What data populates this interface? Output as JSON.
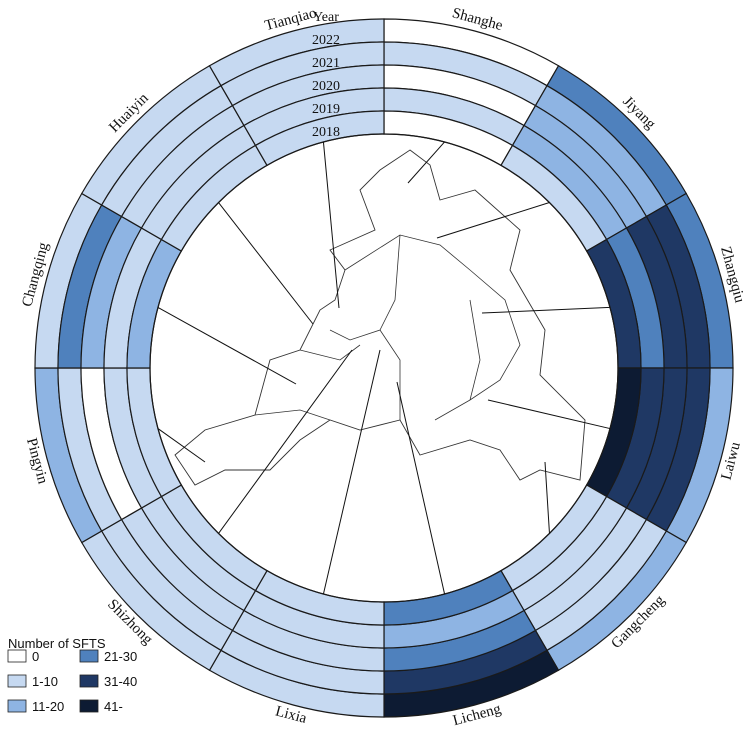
{
  "chart_data": {
    "type": "heatmap",
    "layout": "radial",
    "years": [
      "2022",
      "2021",
      "2020",
      "2019",
      "2018"
    ],
    "year_header": "Year",
    "districts": [
      "Shanghe",
      "Jiyang",
      "Zhangqiu",
      "Laiwu",
      "Gangcheng",
      "Licheng",
      "Lixia",
      "Shizhong",
      "Pingyin",
      "Changqing",
      "Huaiyin",
      "Tianqiao"
    ],
    "category_index": {
      "Shanghe": [
        0,
        1,
        0,
        1,
        0
      ],
      "Jiyang": [
        3,
        2,
        2,
        2,
        1
      ],
      "Zhangqiu": [
        3,
        4,
        4,
        3,
        4
      ],
      "Laiwu": [
        2,
        4,
        4,
        4,
        5
      ],
      "Gangcheng": [
        2,
        1,
        1,
        1,
        1
      ],
      "Licheng": [
        5,
        4,
        3,
        2,
        3
      ],
      "Lixia": [
        1,
        1,
        1,
        1,
        1
      ],
      "Shizhong": [
        1,
        1,
        1,
        1,
        1
      ],
      "Pingyin": [
        2,
        1,
        0,
        1,
        1
      ],
      "Changqing": [
        1,
        3,
        2,
        1,
        2
      ],
      "Huaiyin": [
        1,
        1,
        1,
        1,
        1
      ],
      "Tianqiao": [
        1,
        1,
        1,
        1,
        1
      ]
    },
    "legend": {
      "title": "Number of SFTS",
      "items": [
        {
          "label": "0",
          "color": "#ffffff"
        },
        {
          "label": "1-10",
          "color": "#c6d9f1"
        },
        {
          "label": "11-20",
          "color": "#8eb4e3"
        },
        {
          "label": "21-30",
          "color": "#4f81bd"
        },
        {
          "label": "31-40",
          "color": "#1f3864"
        },
        {
          "label": "41-",
          "color": "#0d1b33"
        }
      ]
    }
  }
}
